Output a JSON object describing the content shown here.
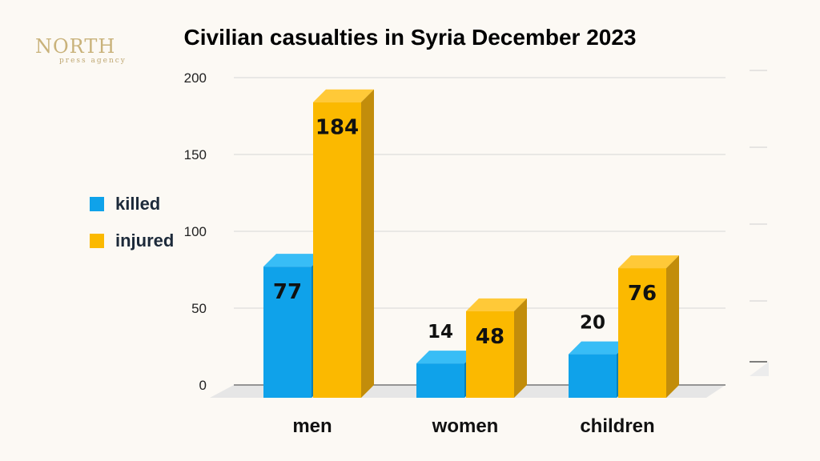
{
  "logo": {
    "main": "NORTH",
    "sub": "press agency"
  },
  "chart_data": {
    "type": "bar",
    "title": "Civilian casualties in Syria December 2023",
    "xlabel": "",
    "ylabel": "",
    "categories": [
      "men",
      "women",
      "children"
    ],
    "series": [
      {
        "name": "killed",
        "values": [
          77,
          14,
          20
        ]
      },
      {
        "name": "injured",
        "values": [
          184,
          48,
          76
        ]
      }
    ],
    "ylim": [
      0,
      200
    ],
    "yticks": [
      0,
      50,
      100,
      150,
      200
    ],
    "grid": true,
    "legend_position": "left",
    "colors": {
      "killed": "#0fa2ea",
      "killed_top": "#38bdf6",
      "killed_side": "#0a7fb6",
      "injured": "#fbb900",
      "injured_top": "#ffc938",
      "injured_side": "#c28d0b",
      "grid": "#d6d6d6",
      "floor": "#e6e6e6"
    }
  }
}
